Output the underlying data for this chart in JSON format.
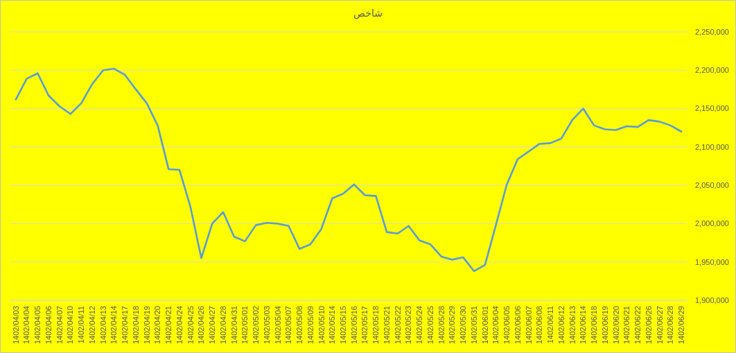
{
  "chart_data": {
    "type": "line",
    "title": "شاخص",
    "categories": [
      "1402/04/03",
      "1402/04/04",
      "1402/04/05",
      "1402/04/06",
      "1402/04/07",
      "1402/04/10",
      "1402/04/11",
      "1402/04/12",
      "1402/04/13",
      "1402/04/14",
      "1402/04/17",
      "1402/04/18",
      "1402/04/19",
      "1402/04/20",
      "1402/04/21",
      "1402/04/24",
      "1402/04/25",
      "1402/04/26",
      "1402/04/27",
      "1402/04/28",
      "1402/04/31",
      "1402/05/01",
      "1402/05/02",
      "1402/05/03",
      "1402/05/04",
      "1402/05/07",
      "1402/05/08",
      "1402/05/09",
      "1402/05/10",
      "1402/05/14",
      "1402/05/15",
      "1402/05/16",
      "1402/05/17",
      "1402/05/18",
      "1402/05/21",
      "1402/05/22",
      "1402/05/23",
      "1402/05/24",
      "1402/05/25",
      "1402/05/28",
      "1402/05/29",
      "1402/05/30",
      "1402/05/31",
      "1402/06/01",
      "1402/06/04",
      "1402/06/05",
      "1402/06/06",
      "1402/06/07",
      "1402/06/08",
      "1402/06/11",
      "1402/06/12",
      "1402/06/13",
      "1402/06/14",
      "1402/06/18",
      "1402/06/19",
      "1402/06/20",
      "1402/06/21",
      "1402/06/22",
      "1402/06/26",
      "1402/06/27",
      "1402/06/28",
      "1402/06/29"
    ],
    "series": [
      {
        "color": "#5b9bd5",
        "values": [
          2162000,
          2189000,
          2196000,
          2167000,
          2153000,
          2143000,
          2157000,
          2182000,
          2200000,
          2202000,
          2194000,
          2175000,
          2157000,
          2128000,
          2071000,
          2070000,
          2022000,
          1955000,
          2000000,
          2015000,
          1983000,
          1977000,
          1998000,
          2001000,
          2000000,
          1997000,
          1967000,
          1973000,
          1993000,
          2033000,
          2039000,
          2051000,
          2037000,
          2036000,
          1989000,
          1987000,
          1997000,
          1978000,
          1973000,
          1957000,
          1953000,
          1956000,
          1938000,
          1946000,
          1998000,
          2051000,
          2084000,
          2094000,
          2104000,
          2105000,
          2111000,
          2135000,
          2150000,
          2128000,
          2123000,
          2122000,
          2127000,
          2126000,
          2135000,
          2133000,
          2128000,
          2120000
        ]
      }
    ],
    "ylim": [
      1900000,
      2250000
    ],
    "yticks": [
      {
        "value": 1900000,
        "label": "1,900,000"
      },
      {
        "value": 1950000,
        "label": "1,950,000"
      },
      {
        "value": 2000000,
        "label": "2,000,000"
      },
      {
        "value": 2050000,
        "label": "2,050,000"
      },
      {
        "value": 2100000,
        "label": "2,100,000"
      },
      {
        "value": 2150000,
        "label": "2,150,000"
      },
      {
        "value": 2200000,
        "label": "2,200,000"
      },
      {
        "value": 2250000,
        "label": "2,250,000"
      }
    ],
    "grid": "y",
    "line_style": "solid"
  }
}
